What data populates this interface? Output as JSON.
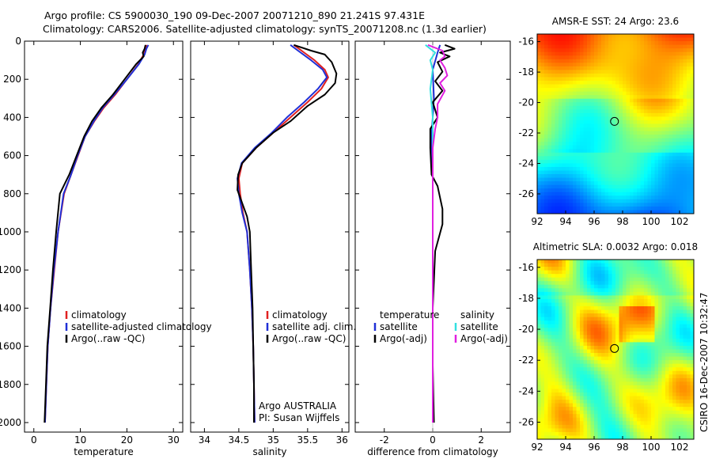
{
  "figure": {
    "title_line1": "Argo profile: CS 5900030_190 09-Dec-2007 20071210_890 21.241S 97.431E",
    "title_line2": "Climatology: CARS2006. Satellite-adjusted climatology: synTS_20071208.nc (1.3d earlier)",
    "side_label": "CSIRO 16-Dec-2007 10:32:47",
    "colors": {
      "climatology": "#e02020",
      "satellite": "#1f2fd6",
      "argo": "#000000",
      "salinity_satellite": "#33e0e0",
      "salinity_argo": "#e020e0",
      "marker": "#000000"
    }
  },
  "chart_data": [
    {
      "type": "line",
      "name": "temperature-panel",
      "xlabel": "temperature",
      "ylabel": "",
      "xlim": [
        -2,
        32
      ],
      "ylim": [
        2050,
        0
      ],
      "x_ticks": [
        0,
        10,
        20,
        30
      ],
      "y_ticks": [
        0,
        200,
        400,
        600,
        800,
        1000,
        1200,
        1400,
        1600,
        1800,
        2000
      ],
      "legend": {
        "position": "lower-right",
        "entries": [
          "climatology",
          "satellite-adjusted climatology",
          "Argo(..raw -QC)"
        ]
      },
      "series": [
        {
          "name": "climatology",
          "color_key": "climatology",
          "points": [
            [
              24.2,
              20
            ],
            [
              24.0,
              40
            ],
            [
              23.6,
              70
            ],
            [
              22.5,
              120
            ],
            [
              20.0,
              200
            ],
            [
              17.5,
              280
            ],
            [
              15.0,
              350
            ],
            [
              13.0,
              420
            ],
            [
              11.0,
              500
            ],
            [
              9.5,
              600
            ],
            [
              8.0,
              700
            ],
            [
              6.5,
              800
            ],
            [
              5.2,
              1000
            ],
            [
              4.4,
              1200
            ],
            [
              3.6,
              1400
            ],
            [
              3.0,
              1600
            ],
            [
              2.7,
              1800
            ],
            [
              2.4,
              2000
            ]
          ]
        },
        {
          "name": "satellite-adjusted climatology",
          "color_key": "satellite",
          "points": [
            [
              24.6,
              20
            ],
            [
              24.2,
              40
            ],
            [
              23.8,
              70
            ],
            [
              22.6,
              120
            ],
            [
              20.0,
              200
            ],
            [
              17.3,
              280
            ],
            [
              14.8,
              350
            ],
            [
              12.9,
              420
            ],
            [
              11.0,
              500
            ],
            [
              9.4,
              600
            ],
            [
              8.0,
              700
            ],
            [
              6.4,
              800
            ],
            [
              5.2,
              1000
            ],
            [
              4.3,
              1200
            ],
            [
              3.6,
              1400
            ],
            [
              3.0,
              1600
            ],
            [
              2.7,
              1800
            ],
            [
              2.4,
              2000
            ]
          ]
        },
        {
          "name": "Argo(..raw -QC)",
          "color_key": "argo",
          "points": [
            [
              24.0,
              20
            ],
            [
              23.8,
              40
            ],
            [
              23.4,
              60
            ],
            [
              23.6,
              80
            ],
            [
              22.0,
              120
            ],
            [
              19.5,
              200
            ],
            [
              17.0,
              280
            ],
            [
              14.5,
              350
            ],
            [
              12.5,
              420
            ],
            [
              10.8,
              500
            ],
            [
              9.2,
              600
            ],
            [
              7.6,
              700
            ],
            [
              6.6,
              750
            ],
            [
              5.6,
              800
            ],
            [
              4.8,
              1000
            ],
            [
              4.1,
              1200
            ],
            [
              3.5,
              1400
            ],
            [
              2.9,
              1600
            ],
            [
              2.6,
              1800
            ],
            [
              2.3,
              2000
            ]
          ]
        }
      ]
    },
    {
      "type": "line",
      "name": "salinity-panel",
      "xlabel": "salinity",
      "ylabel": "",
      "xlim": [
        33.8,
        36.1
      ],
      "ylim": [
        2050,
        0
      ],
      "x_ticks": [
        34,
        34.5,
        35,
        35.5,
        36
      ],
      "x_tick_labels": [
        "34",
        "34.5",
        "35",
        "35.5",
        "36"
      ],
      "legend": {
        "position": "lower-right",
        "entries": [
          "climatology",
          "satellite adj. clim.",
          "Argo(..raw -QC)"
        ]
      },
      "annotation": [
        "Argo AUSTRALIA",
        "PI: Susan Wijffels"
      ],
      "series": [
        {
          "name": "climatology",
          "color_key": "climatology",
          "points": [
            [
              35.3,
              20
            ],
            [
              35.45,
              60
            ],
            [
              35.6,
              100
            ],
            [
              35.75,
              150
            ],
            [
              35.8,
              190
            ],
            [
              35.7,
              250
            ],
            [
              35.5,
              320
            ],
            [
              35.25,
              400
            ],
            [
              35.0,
              480
            ],
            [
              34.75,
              560
            ],
            [
              34.55,
              640
            ],
            [
              34.5,
              720
            ],
            [
              34.52,
              800
            ],
            [
              34.56,
              900
            ],
            [
              34.62,
              1000
            ],
            [
              34.66,
              1200
            ],
            [
              34.69,
              1400
            ],
            [
              34.71,
              1600
            ],
            [
              34.72,
              1800
            ],
            [
              34.73,
              2000
            ]
          ]
        },
        {
          "name": "satellite adj. clim.",
          "color_key": "satellite",
          "points": [
            [
              35.25,
              20
            ],
            [
              35.4,
              60
            ],
            [
              35.55,
              100
            ],
            [
              35.72,
              150
            ],
            [
              35.78,
              190
            ],
            [
              35.65,
              250
            ],
            [
              35.45,
              320
            ],
            [
              35.2,
              400
            ],
            [
              34.98,
              480
            ],
            [
              34.73,
              560
            ],
            [
              34.54,
              640
            ],
            [
              34.48,
              720
            ],
            [
              34.5,
              800
            ],
            [
              34.55,
              900
            ],
            [
              34.62,
              1000
            ],
            [
              34.66,
              1200
            ],
            [
              34.69,
              1400
            ],
            [
              34.71,
              1600
            ],
            [
              34.72,
              1800
            ],
            [
              34.73,
              2000
            ]
          ]
        },
        {
          "name": "Argo(..raw -QC)",
          "color_key": "argo",
          "points": [
            [
              35.3,
              20
            ],
            [
              35.55,
              50
            ],
            [
              35.75,
              70
            ],
            [
              35.85,
              110
            ],
            [
              35.92,
              170
            ],
            [
              35.9,
              220
            ],
            [
              35.75,
              280
            ],
            [
              35.5,
              340
            ],
            [
              35.25,
              420
            ],
            [
              35.0,
              480
            ],
            [
              34.75,
              560
            ],
            [
              34.55,
              640
            ],
            [
              34.49,
              700
            ],
            [
              34.48,
              780
            ],
            [
              34.55,
              850
            ],
            [
              34.62,
              920
            ],
            [
              34.66,
              1000
            ],
            [
              34.68,
              1200
            ],
            [
              34.7,
              1400
            ],
            [
              34.71,
              1600
            ],
            [
              34.72,
              1800
            ],
            [
              34.72,
              2000
            ]
          ]
        }
      ]
    },
    {
      "type": "line",
      "name": "difference-panel",
      "xlabel": "difference from climatology",
      "ylabel": "",
      "xlim": [
        -3.2,
        3.2
      ],
      "ylim": [
        2050,
        0
      ],
      "x_ticks": [
        -2,
        0,
        2
      ],
      "legend": {
        "position": "lower-center",
        "groups": [
          {
            "title": "temperature",
            "entries": [
              "satellite",
              "Argo(-adj)"
            ]
          },
          {
            "title": "salinity",
            "entries": [
              "satellite",
              "Argo(-adj)"
            ]
          }
        ]
      },
      "series": [
        {
          "name": "temperature satellite",
          "color_key": "satellite",
          "points": [
            [
              0.3,
              20
            ],
            [
              0.2,
              60
            ],
            [
              0.0,
              150
            ],
            [
              0.05,
              300
            ],
            [
              -0.05,
              500
            ],
            [
              0.0,
              700
            ],
            [
              0.0,
              900
            ],
            [
              0.0,
              1000
            ]
          ]
        },
        {
          "name": "temperature Argo(-adj)",
          "color_key": "argo",
          "points": [
            [
              0.5,
              20
            ],
            [
              0.9,
              40
            ],
            [
              0.3,
              60
            ],
            [
              0.7,
              80
            ],
            [
              0.2,
              110
            ],
            [
              0.4,
              160
            ],
            [
              0.1,
              210
            ],
            [
              0.4,
              260
            ],
            [
              0.0,
              320
            ],
            [
              0.2,
              400
            ],
            [
              -0.1,
              460
            ],
            [
              -0.1,
              560
            ],
            [
              -0.05,
              700
            ],
            [
              0.2,
              760
            ],
            [
              0.3,
              820
            ],
            [
              0.4,
              880
            ],
            [
              0.4,
              960
            ],
            [
              0.1,
              1100
            ],
            [
              0.0,
              1400
            ],
            [
              0.0,
              1700
            ],
            [
              0.05,
              2000
            ]
          ]
        },
        {
          "name": "salinity satellite",
          "color_key": "salinity_satellite",
          "points": [
            [
              -0.3,
              20
            ],
            [
              0.1,
              60
            ],
            [
              -0.1,
              100
            ],
            [
              0.0,
              150
            ],
            [
              -0.1,
              250
            ],
            [
              0.0,
              400
            ],
            [
              0.0,
              700
            ],
            [
              0.0,
              1000
            ],
            [
              0.0,
              1400
            ],
            [
              0.0,
              1700
            ],
            [
              0.0,
              2000
            ]
          ]
        },
        {
          "name": "salinity Argo(-adj)",
          "color_key": "salinity_argo",
          "points": [
            [
              -0.2,
              20
            ],
            [
              0.4,
              50
            ],
            [
              0.5,
              80
            ],
            [
              0.3,
              100
            ],
            [
              0.5,
              140
            ],
            [
              0.6,
              180
            ],
            [
              0.3,
              220
            ],
            [
              0.5,
              260
            ],
            [
              0.2,
              330
            ],
            [
              0.2,
              400
            ],
            [
              0.1,
              460
            ],
            [
              0.0,
              560
            ],
            [
              0.0,
              700
            ],
            [
              0.0,
              900
            ],
            [
              0.0,
              1200
            ],
            [
              0.0,
              1600
            ],
            [
              0.0,
              2000
            ]
          ]
        }
      ]
    },
    {
      "type": "heatmap",
      "name": "sst-map",
      "title": "AMSR-E SST: 24 Argo: 23.6",
      "xlim": [
        92,
        103
      ],
      "ylim": [
        -27.3,
        -15.5
      ],
      "x_ticks": [
        92,
        94,
        96,
        98,
        100,
        102
      ],
      "y_ticks": [
        -16,
        -18,
        -20,
        -22,
        -24,
        -26
      ],
      "marker": [
        97.43,
        -21.24
      ]
    },
    {
      "type": "heatmap",
      "name": "sla-map",
      "title": "Altimetric SLA: 0.0032 Argo: 0.018",
      "xlim": [
        92,
        103
      ],
      "ylim": [
        -27.1,
        -15.5
      ],
      "x_ticks": [
        92,
        94,
        96,
        98,
        100,
        102
      ],
      "y_ticks": [
        -16,
        -18,
        -20,
        -22,
        -24,
        -26
      ],
      "marker": [
        97.43,
        -21.24
      ]
    }
  ]
}
